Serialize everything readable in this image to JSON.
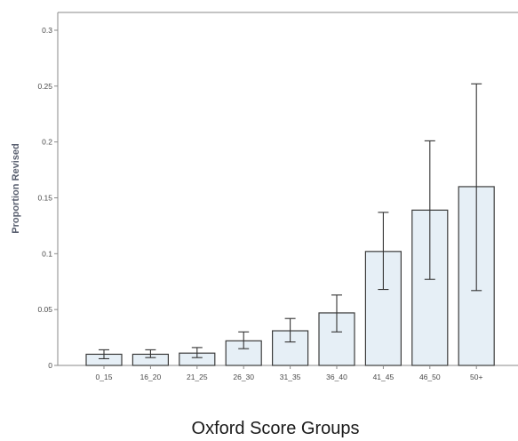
{
  "chart_data": {
    "type": "bar",
    "title": "",
    "xlabel": "Oxford Score Groups",
    "ylabel": "Proportion Revised",
    "categories": [
      "0_15",
      "16_20",
      "21_25",
      "26_30",
      "31_35",
      "36_40",
      "41_45",
      "46_50",
      "50+"
    ],
    "series": [
      {
        "values": [
          0.01,
          0.01,
          0.011,
          0.022,
          0.031,
          0.047,
          0.102,
          0.139,
          0.16
        ],
        "error_low": [
          0.006,
          0.007,
          0.007,
          0.015,
          0.021,
          0.03,
          0.068,
          0.077,
          0.067
        ],
        "error_high": [
          0.014,
          0.014,
          0.016,
          0.03,
          0.042,
          0.063,
          0.137,
          0.201,
          0.252
        ]
      }
    ],
    "yticks": [
      "0",
      "0.05",
      "0.1",
      "0.15",
      "0.2",
      "0.25",
      "0.3"
    ],
    "ytick_values": [
      0,
      0.05,
      0.1,
      0.15,
      0.2,
      0.25,
      0.3
    ],
    "ylim": [
      0,
      0.31
    ],
    "grid": false,
    "bar_fill": "#e6eff6",
    "bar_stroke": "#3c3c3c"
  }
}
